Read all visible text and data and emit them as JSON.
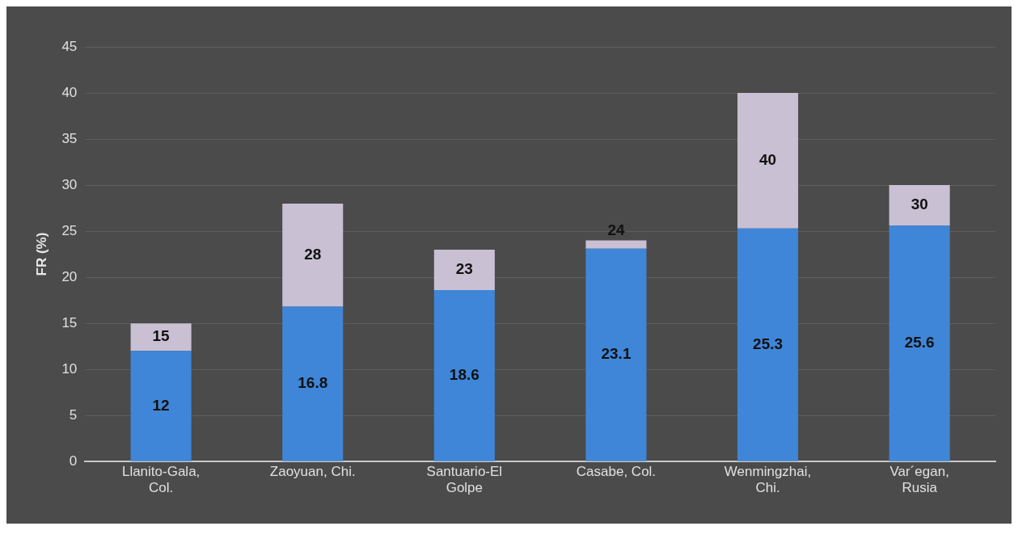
{
  "chart_data": {
    "type": "bar",
    "ylabel": "FR (%)",
    "categories": [
      "Llanito-Gala, Col.",
      "Zaoyuan, Chi.",
      "Santuario-El Golpe",
      "Casabe, Col.",
      "Wenmingzhai, Chi.",
      "Var´egan, Rusia"
    ],
    "stacked": true,
    "series": [
      {
        "color": "#3f86d8",
        "values": [
          12,
          16.8,
          18.6,
          23.1,
          25.3,
          25.6
        ],
        "value_labels": [
          "12",
          "16.8",
          "18.6",
          "23.1",
          "25.3",
          "25.6"
        ]
      },
      {
        "color": "#c9c0d3",
        "values": [
          3,
          11.2,
          4.4,
          0.9,
          14.7,
          4.4
        ]
      }
    ],
    "totals": [
      "15",
      "28",
      "23",
      "24",
      "40",
      "30"
    ],
    "ylim": [
      0,
      45
    ],
    "yticks": [
      0,
      5,
      10,
      15,
      20,
      25,
      30,
      35,
      40,
      45
    ],
    "grid": "y"
  }
}
